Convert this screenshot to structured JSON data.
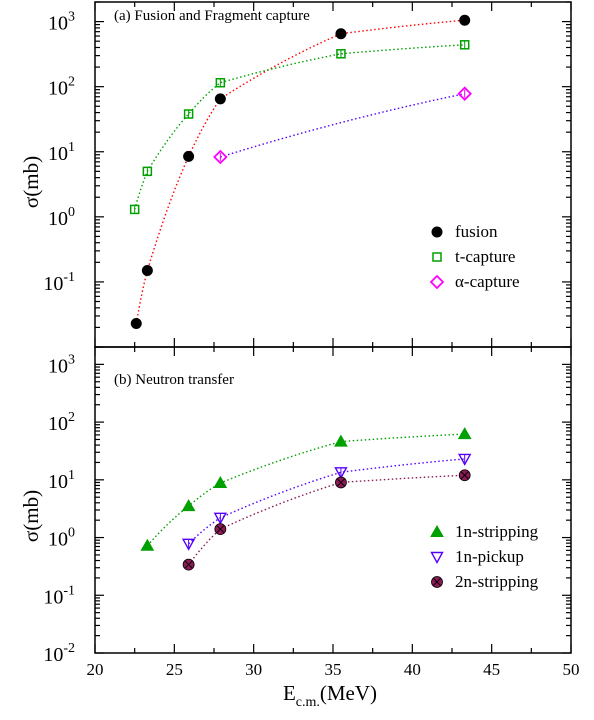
{
  "chart_data": [
    {
      "type": "scatter",
      "panel_label": "(a) Fusion and  Fragment capture",
      "ylabel": "σ(mb)",
      "yscale": "log",
      "xlim": [
        20,
        50
      ],
      "ylim": [
        0.01,
        2000
      ],
      "x_ticks": [
        20,
        25,
        30,
        35,
        40,
        45,
        50
      ],
      "y_ticks": [
        {
          "value": 1000,
          "base": "10",
          "exp": "3"
        },
        {
          "value": 100,
          "base": "10",
          "exp": "2"
        },
        {
          "value": 10,
          "base": "10",
          "exp": "1"
        },
        {
          "value": 1,
          "base": "10",
          "exp": "0"
        },
        {
          "value": 0.1,
          "base": "10",
          "exp": "-1"
        }
      ],
      "legend_position": "lower-right",
      "series": [
        {
          "name": "fusion",
          "marker": "filled-circle",
          "color": "#000000",
          "line_color": "#ff0000",
          "x": [
            22.6,
            23.3,
            25.9,
            27.9,
            35.5,
            43.3
          ],
          "y": [
            0.023,
            0.15,
            8.5,
            65,
            650,
            1050
          ]
        },
        {
          "name": "t-capture",
          "marker": "open-square",
          "color": "#00a000",
          "line_color": "#00a000",
          "x": [
            22.5,
            23.3,
            25.9,
            27.9,
            35.5,
            43.3
          ],
          "y": [
            1.3,
            5,
            38,
            115,
            320,
            440
          ]
        },
        {
          "name": "α-capture",
          "marker": "open-diamond",
          "color": "#ff00ff",
          "line_color": "#5500ff",
          "x": [
            27.9,
            43.3
          ],
          "y": [
            8.3,
            78
          ]
        }
      ]
    },
    {
      "type": "scatter",
      "panel_label": "(b) Neutron transfer",
      "ylabel": "σ(mb)",
      "xlabel_main": "E",
      "xlabel_sub": "c.m.",
      "xlabel_unit": "(MeV)",
      "yscale": "log",
      "xlim": [
        20,
        50
      ],
      "ylim": [
        0.01,
        2000
      ],
      "x_ticks": [
        20,
        25,
        30,
        35,
        40,
        45,
        50
      ],
      "y_ticks": [
        {
          "value": 1000,
          "base": "10",
          "exp": "3"
        },
        {
          "value": 100,
          "base": "10",
          "exp": "2"
        },
        {
          "value": 10,
          "base": "10",
          "exp": "1"
        },
        {
          "value": 1,
          "base": "10",
          "exp": "0"
        },
        {
          "value": 0.1,
          "base": "10",
          "exp": "-1"
        },
        {
          "value": 0.01,
          "base": "10",
          "exp": "-2"
        }
      ],
      "legend_position": "lower-right",
      "series": [
        {
          "name": "1n-stripping",
          "marker": "filled-triangle-up",
          "color": "#00a000",
          "line_color": "#00a000",
          "x": [
            23.3,
            25.9,
            27.9,
            35.5,
            43.3
          ],
          "y": [
            0.72,
            3.5,
            8.8,
            46,
            62
          ]
        },
        {
          "name": "1n-pickup",
          "marker": "open-triangle-down",
          "color": "#5500ff",
          "line_color": "#5500ff",
          "x": [
            25.9,
            27.9,
            35.5,
            43.3
          ],
          "y": [
            0.78,
            2.2,
            13.5,
            23
          ]
        },
        {
          "name": "2n-stripping",
          "marker": "crossed-circle",
          "color": "#8b1a55",
          "line_color": "#8b1a55",
          "x": [
            25.9,
            27.9,
            35.5,
            43.3
          ],
          "y": [
            0.34,
            1.4,
            9,
            12
          ]
        }
      ]
    }
  ]
}
